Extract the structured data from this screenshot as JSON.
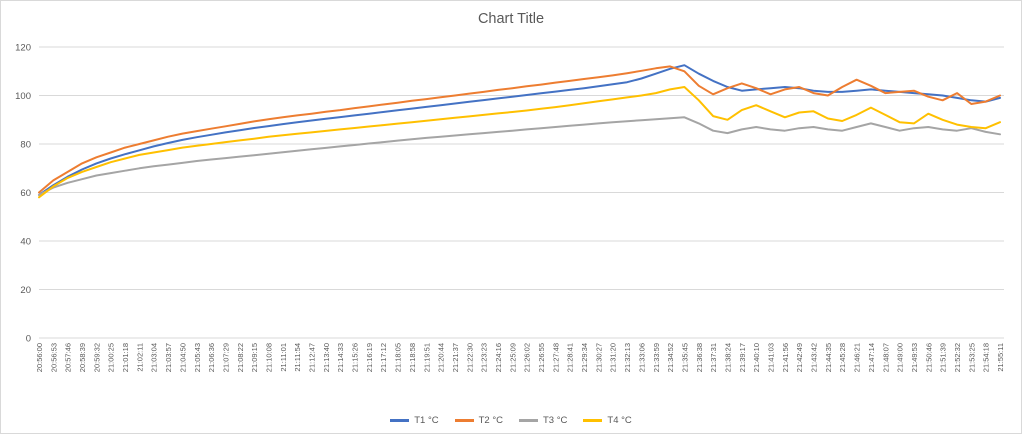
{
  "chart_data": {
    "type": "line",
    "title": "Chart Title",
    "xlabel": "",
    "ylabel": "",
    "ylim": [
      0,
      120
    ],
    "yticks": [
      0,
      20,
      40,
      60,
      80,
      100,
      120
    ],
    "grid": true,
    "legend_position": "bottom",
    "colors": {
      "gridline": "#d9d9d9",
      "axis_text": "#595959",
      "background": "#ffffff"
    },
    "x": [
      "20:56:00",
      "20:56:53",
      "20:57:46",
      "20:58:39",
      "20:59:32",
      "21:00:25",
      "21:01:18",
      "21:02:11",
      "21:03:04",
      "21:03:57",
      "21:04:50",
      "21:05:43",
      "21:06:36",
      "21:07:29",
      "21:08:22",
      "21:09:15",
      "21:10:08",
      "21:11:01",
      "21:11:54",
      "21:12:47",
      "21:13:40",
      "21:14:33",
      "21:15:26",
      "21:16:19",
      "21:17:12",
      "21:18:05",
      "21:18:58",
      "21:19:51",
      "21:20:44",
      "21:21:37",
      "21:22:30",
      "21:23:23",
      "21:24:16",
      "21:25:09",
      "21:26:02",
      "21:26:55",
      "21:27:48",
      "21:28:41",
      "21:29:34",
      "21:30:27",
      "21:31:20",
      "21:32:13",
      "21:33:06",
      "21:33:59",
      "21:34:52",
      "21:35:45",
      "21:36:38",
      "21:37:31",
      "21:38:24",
      "21:39:17",
      "21:40:10",
      "21:41:03",
      "21:41:56",
      "21:42:49",
      "21:43:42",
      "21:44:35",
      "21:45:28",
      "21:46:21",
      "21:47:14",
      "21:48:07",
      "21:49:00",
      "21:49:53",
      "21:50:46",
      "21:51:39",
      "21:52:32",
      "21:53:25",
      "21:54:18",
      "21:55:11"
    ],
    "series": [
      {
        "name": "T1 °C",
        "color": "#4472C4",
        "values": [
          59,
          63,
          66.5,
          69.5,
          72,
          74,
          75.8,
          77.4,
          79,
          80.4,
          81.7,
          82.8,
          83.8,
          84.8,
          85.7,
          86.6,
          87.4,
          88.2,
          89,
          89.7,
          90.4,
          91.1,
          91.8,
          92.5,
          93.2,
          93.9,
          94.6,
          95.3,
          96,
          96.7,
          97.4,
          98.1,
          98.8,
          99.5,
          100.2,
          100.9,
          101.6,
          102.3,
          103,
          103.8,
          104.6,
          105.5,
          107,
          109,
          111,
          112.5,
          109,
          106,
          103.5,
          102,
          102.5,
          103,
          103.5,
          103,
          102,
          101.5,
          101.5,
          102,
          102.5,
          102,
          101.5,
          101,
          100.5,
          100,
          99,
          98,
          97.5,
          99
        ]
      },
      {
        "name": "T2 °C",
        "color": "#ED7D31",
        "values": [
          60,
          65,
          68.5,
          72,
          74.5,
          76.5,
          78.5,
          80,
          81.5,
          83,
          84.3,
          85.3,
          86.3,
          87.3,
          88.3,
          89.3,
          90.2,
          91,
          91.8,
          92.5,
          93.3,
          94,
          94.8,
          95.5,
          96.3,
          97,
          97.8,
          98.5,
          99.3,
          100,
          100.8,
          101.5,
          102.3,
          103,
          103.8,
          104.5,
          105.3,
          106,
          106.8,
          107.5,
          108.3,
          109.2,
          110.2,
          111.2,
          112,
          110,
          104,
          100.5,
          103,
          105,
          103,
          100.5,
          102.5,
          103.5,
          101,
          100,
          103.5,
          106.5,
          104,
          101,
          101.5,
          102,
          99.5,
          98,
          101,
          96.5,
          97.5,
          100
        ]
      },
      {
        "name": "T3 °C",
        "color": "#A5A5A5",
        "values": [
          59,
          62,
          64,
          65.5,
          67,
          68,
          69,
          70,
          70.8,
          71.5,
          72.2,
          73,
          73.6,
          74.2,
          74.8,
          75.4,
          76,
          76.6,
          77.2,
          77.8,
          78.4,
          79,
          79.6,
          80.2,
          80.8,
          81.4,
          82,
          82.5,
          83,
          83.5,
          84,
          84.5,
          85,
          85.5,
          86,
          86.5,
          87,
          87.5,
          88,
          88.5,
          89,
          89.4,
          89.8,
          90.2,
          90.6,
          91,
          88.5,
          85.5,
          84.5,
          86,
          87,
          86,
          85.5,
          86.5,
          87,
          86,
          85.5,
          87,
          88.5,
          87,
          85.5,
          86.5,
          87,
          86,
          85.5,
          86.5,
          85,
          84
        ]
      },
      {
        "name": "T4 °C",
        "color": "#FFC000",
        "values": [
          58,
          62.5,
          66,
          68.5,
          70.5,
          72.5,
          74,
          75.5,
          76.5,
          77.5,
          78.5,
          79.3,
          80,
          80.8,
          81.5,
          82.2,
          83,
          83.6,
          84.2,
          84.8,
          85.4,
          86,
          86.6,
          87.2,
          87.8,
          88.4,
          89,
          89.6,
          90.2,
          90.8,
          91.4,
          92,
          92.6,
          93.2,
          93.8,
          94.5,
          95.2,
          96,
          96.8,
          97.6,
          98.4,
          99.2,
          100,
          101,
          102.5,
          103.5,
          98,
          91.5,
          90,
          94,
          96,
          93.5,
          91,
          93,
          93.5,
          90.5,
          89.5,
          92,
          95,
          92,
          89,
          88.5,
          92.5,
          90,
          88,
          87,
          86.5,
          89
        ]
      }
    ]
  }
}
